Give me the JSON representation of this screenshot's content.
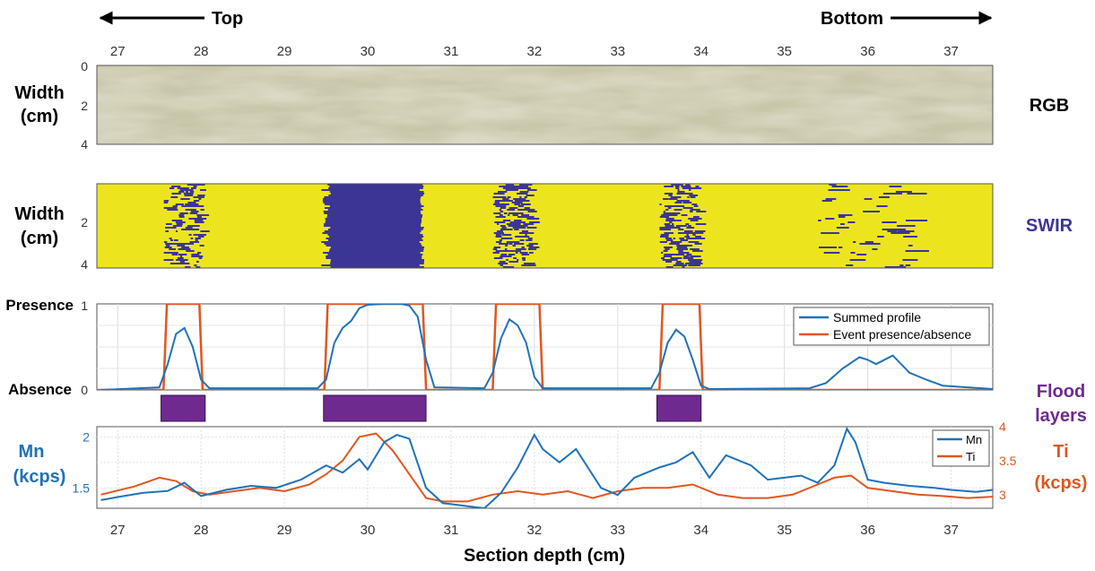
{
  "header": {
    "top_label": "Top",
    "bottom_label": "Bottom"
  },
  "xaxis": {
    "range": [
      26.75,
      37.5
    ],
    "ticks": [
      27,
      28,
      29,
      30,
      31,
      32,
      33,
      34,
      35,
      36,
      37
    ],
    "tick_labels": [
      "27",
      "28",
      "29",
      "30",
      "31",
      "32",
      "33",
      "34",
      "35",
      "36",
      "37"
    ],
    "label": "Section depth (cm)"
  },
  "rgb_panel": {
    "ylabel_line1": "Width",
    "ylabel_line2": "(cm)",
    "y_ticks": [
      "0",
      "2",
      "4"
    ],
    "side_label": "RGB",
    "colors": {
      "base": "#c8c6a8",
      "dark": "#a9a78a",
      "light": "#d7d5bc"
    }
  },
  "swir_panel": {
    "ylabel_line1": "Width",
    "ylabel_line2": "(cm)",
    "y_ticks": [
      "2",
      "4"
    ],
    "side_label": "SWIR",
    "colors": {
      "background": "#ece51e",
      "feature": "#3b3595"
    },
    "dark_bands": [
      {
        "from": 27.55,
        "to": 28.0,
        "density": 0.55
      },
      {
        "from": 29.5,
        "to": 30.65,
        "density": 0.95
      },
      {
        "from": 31.5,
        "to": 31.95,
        "density": 0.7
      },
      {
        "from": 33.5,
        "to": 33.95,
        "density": 0.65
      },
      {
        "from": 35.4,
        "to": 36.5,
        "density": 0.25
      }
    ]
  },
  "presence_panel": {
    "y_top_label": "Presence",
    "y_bottom_label": "Absence",
    "y_ticks": [
      "1",
      "0"
    ],
    "legend": [
      "Summed profile",
      "Event presence/absence"
    ],
    "colors": {
      "summed": "#1f72b8",
      "event": "#e0561f"
    }
  },
  "flood_layers": {
    "label_line1": "Flood",
    "label_line2": "layers",
    "color": "#6f2a8f",
    "intervals": [
      [
        27.52,
        28.05
      ],
      [
        29.47,
        30.7
      ],
      [
        33.47,
        34.0
      ]
    ]
  },
  "mn_ti_panel": {
    "mn_label_line1": "Mn",
    "mn_label_line2": "(kcps)",
    "ti_label_line1": "Ti",
    "ti_label_line2": "(kcps)",
    "mn_ticks": [
      "1.5",
      "2"
    ],
    "ti_ticks": [
      "3",
      "3.5",
      "4"
    ],
    "legend": [
      "Mn",
      "Ti"
    ],
    "colors": {
      "mn": "#1f72b8",
      "ti": "#e0561f"
    }
  },
  "chart_data": {
    "type": "line",
    "x_unit": "cm",
    "event_presence": {
      "name": "Event presence/absence",
      "intervals": [
        [
          27.55,
          28.02
        ],
        [
          29.48,
          30.7
        ],
        [
          31.5,
          32.1
        ],
        [
          33.5,
          34.02
        ]
      ],
      "ylim": [
        0,
        1
      ]
    },
    "summed_profile": {
      "name": "Summed profile",
      "x": [
        26.8,
        27.5,
        27.6,
        27.7,
        27.8,
        27.9,
        28.0,
        28.1,
        29.4,
        29.5,
        29.6,
        29.7,
        29.8,
        29.9,
        30.0,
        30.2,
        30.4,
        30.5,
        30.6,
        30.7,
        30.8,
        31.4,
        31.5,
        31.6,
        31.7,
        31.8,
        31.9,
        32.0,
        32.1,
        33.4,
        33.5,
        33.6,
        33.7,
        33.8,
        33.9,
        34.0,
        34.1,
        35.3,
        35.5,
        35.7,
        35.9,
        36.0,
        36.1,
        36.3,
        36.5,
        36.7,
        36.9,
        37.5
      ],
      "y": [
        0.0,
        0.03,
        0.3,
        0.65,
        0.72,
        0.5,
        0.12,
        0.02,
        0.02,
        0.12,
        0.55,
        0.72,
        0.8,
        0.95,
        0.99,
        1.0,
        1.0,
        0.98,
        0.85,
        0.35,
        0.03,
        0.02,
        0.2,
        0.6,
        0.82,
        0.75,
        0.55,
        0.15,
        0.02,
        0.02,
        0.2,
        0.55,
        0.7,
        0.62,
        0.35,
        0.05,
        0.01,
        0.02,
        0.08,
        0.25,
        0.38,
        0.35,
        0.3,
        0.4,
        0.2,
        0.12,
        0.05,
        0.01
      ],
      "ylim": [
        0,
        1
      ]
    },
    "mn": {
      "name": "Mn",
      "x": [
        26.8,
        27.0,
        27.3,
        27.6,
        27.8,
        28.0,
        28.3,
        28.6,
        28.9,
        29.2,
        29.5,
        29.7,
        29.9,
        30.0,
        30.2,
        30.35,
        30.5,
        30.7,
        30.9,
        31.2,
        31.4,
        31.6,
        31.8,
        32.0,
        32.1,
        32.3,
        32.5,
        32.8,
        33.0,
        33.2,
        33.5,
        33.7,
        33.9,
        34.1,
        34.3,
        34.6,
        34.8,
        35.0,
        35.2,
        35.4,
        35.6,
        35.75,
        35.85,
        36.0,
        36.2,
        36.5,
        36.8,
        37.0,
        37.3,
        37.5
      ],
      "y": [
        1.38,
        1.41,
        1.45,
        1.47,
        1.55,
        1.42,
        1.48,
        1.52,
        1.5,
        1.58,
        1.72,
        1.65,
        1.78,
        1.68,
        1.95,
        2.02,
        1.98,
        1.5,
        1.35,
        1.32,
        1.3,
        1.45,
        1.7,
        2.02,
        1.88,
        1.75,
        1.88,
        1.5,
        1.43,
        1.6,
        1.7,
        1.75,
        1.85,
        1.6,
        1.82,
        1.72,
        1.58,
        1.6,
        1.62,
        1.55,
        1.72,
        2.08,
        1.95,
        1.58,
        1.55,
        1.52,
        1.5,
        1.48,
        1.46,
        1.48
      ],
      "ylim": [
        1.3,
        2.1
      ]
    },
    "ti": {
      "name": "Ti",
      "x": [
        26.8,
        27.2,
        27.5,
        27.7,
        27.9,
        28.1,
        28.4,
        28.7,
        29.0,
        29.3,
        29.5,
        29.7,
        29.9,
        30.1,
        30.3,
        30.5,
        30.7,
        30.9,
        31.2,
        31.5,
        31.8,
        32.1,
        32.4,
        32.7,
        33.0,
        33.3,
        33.6,
        33.9,
        34.2,
        34.5,
        34.8,
        35.1,
        35.4,
        35.6,
        35.8,
        36.0,
        36.3,
        36.6,
        36.9,
        37.2,
        37.5
      ],
      "y": [
        3.0,
        3.12,
        3.25,
        3.2,
        3.05,
        3.0,
        3.05,
        3.1,
        3.05,
        3.15,
        3.3,
        3.5,
        3.85,
        3.9,
        3.65,
        3.3,
        2.95,
        2.9,
        2.9,
        3.0,
        3.05,
        3.0,
        3.05,
        2.95,
        3.05,
        3.1,
        3.1,
        3.15,
        3.0,
        2.95,
        2.95,
        3.0,
        3.15,
        3.25,
        3.28,
        3.1,
        3.05,
        3.0,
        2.98,
        2.95,
        2.97
      ],
      "ylim": [
        2.8,
        4.0
      ]
    }
  }
}
